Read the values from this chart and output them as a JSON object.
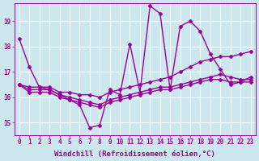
{
  "background_color": "#cce8ee",
  "line_color": "#990099",
  "marker": "D",
  "markersize": 2.5,
  "linewidth": 1.0,
  "xlabel": "Windchill (Refroidissement éolien,°C)",
  "xlabel_fontsize": 6.5,
  "tick_fontsize": 5.5,
  "xlim": [
    -0.5,
    23.5
  ],
  "ylim": [
    14.5,
    19.7
  ],
  "yticks": [
    15,
    16,
    17,
    18,
    19
  ],
  "xticks": [
    0,
    1,
    2,
    3,
    4,
    5,
    6,
    7,
    8,
    9,
    10,
    11,
    12,
    13,
    14,
    15,
    16,
    17,
    18,
    19,
    20,
    21,
    22,
    23
  ],
  "series": [
    [
      18.3,
      17.2,
      16.4,
      16.3,
      16.1,
      15.9,
      15.7,
      14.8,
      14.9,
      16.3,
      16.1,
      18.1,
      16.2,
      19.6,
      19.3,
      16.3,
      18.8,
      19.0,
      18.6,
      17.7,
      17.1,
      16.5,
      16.6,
      16.8
    ],
    [
      16.5,
      16.4,
      16.4,
      16.4,
      16.2,
      16.2,
      16.1,
      16.1,
      16.0,
      16.2,
      16.3,
      16.4,
      16.5,
      16.6,
      16.7,
      16.8,
      17.0,
      17.2,
      17.4,
      17.5,
      17.6,
      17.6,
      17.7,
      17.8
    ],
    [
      16.5,
      16.3,
      16.3,
      16.3,
      16.1,
      16.0,
      15.9,
      15.8,
      15.7,
      15.9,
      16.0,
      16.1,
      16.2,
      16.3,
      16.4,
      16.4,
      16.5,
      16.6,
      16.7,
      16.8,
      16.9,
      16.8,
      16.7,
      16.7
    ],
    [
      16.5,
      16.2,
      16.2,
      16.2,
      16.0,
      15.9,
      15.8,
      15.7,
      15.6,
      15.8,
      15.9,
      16.0,
      16.1,
      16.2,
      16.3,
      16.3,
      16.4,
      16.5,
      16.6,
      16.7,
      16.7,
      16.6,
      16.6,
      16.6
    ]
  ]
}
